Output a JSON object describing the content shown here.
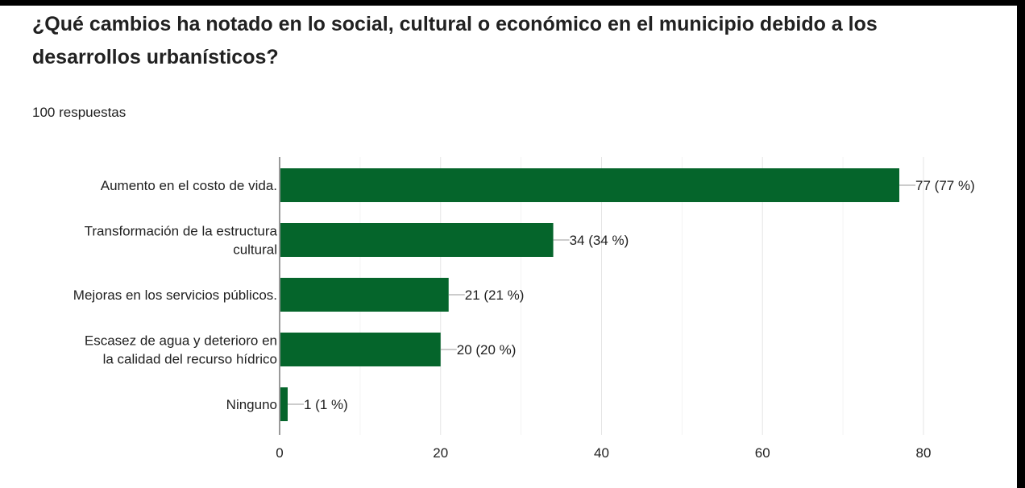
{
  "title": "¿Qué cambios ha notado en lo social, cultural o económico en el municipio debido a los desarrollos urbanísticos?",
  "response_count": "100 respuestas",
  "colors": {
    "bar": "#05652B",
    "grid": "#e5e5e5",
    "axis": "#333333",
    "leader": "#999999"
  },
  "chart_data": {
    "type": "bar",
    "orientation": "horizontal",
    "categories": [
      [
        "Aumento en el costo de vida."
      ],
      [
        "Transformación de la estructura",
        "cultural"
      ],
      [
        "Mejoras en los servicios públicos."
      ],
      [
        "Escasez de agua y deterioro en",
        "la calidad del recurso hídrico"
      ],
      [
        "Ninguno"
      ]
    ],
    "values": [
      77,
      34,
      21,
      20,
      1
    ],
    "value_labels": [
      "77 (77 %)",
      "34 (34 %)",
      "21 (21 %)",
      "20 (20 %)",
      "1 (1 %)"
    ],
    "xlim": [
      0,
      80
    ],
    "xticks": [
      0,
      20,
      40,
      60,
      80
    ],
    "grid": true,
    "legend": "none"
  }
}
